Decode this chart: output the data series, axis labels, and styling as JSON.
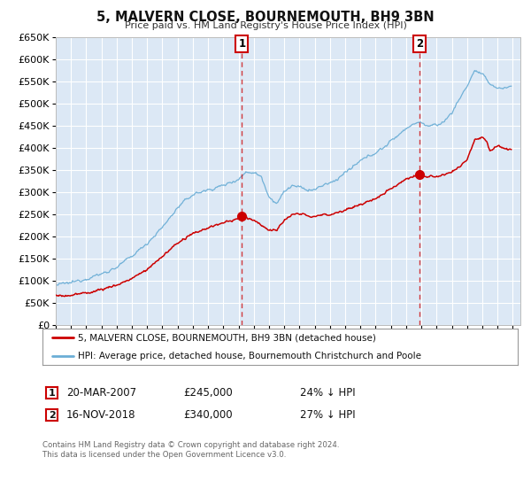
{
  "title": "5, MALVERN CLOSE, BOURNEMOUTH, BH9 3BN",
  "subtitle": "Price paid vs. HM Land Registry's House Price Index (HPI)",
  "hpi_color": "#6baed6",
  "price_color": "#cc0000",
  "background_color": "#ffffff",
  "plot_bg_color": "#dce8f5",
  "grid_color": "#ffffff",
  "ylim": [
    0,
    650000
  ],
  "yticks": [
    0,
    50000,
    100000,
    150000,
    200000,
    250000,
    300000,
    350000,
    400000,
    450000,
    500000,
    550000,
    600000,
    650000
  ],
  "xlim_start": 1995.0,
  "xlim_end": 2025.5,
  "marker1_x": 2007.22,
  "marker1_y": 245000,
  "marker1_label": "1",
  "marker1_date": "20-MAR-2007",
  "marker1_price": "£245,000",
  "marker1_hpi": "24% ↓ HPI",
  "marker2_x": 2018.88,
  "marker2_y": 340000,
  "marker2_label": "2",
  "marker2_date": "16-NOV-2018",
  "marker2_price": "£340,000",
  "marker2_hpi": "27% ↓ HPI",
  "legend_line1": "5, MALVERN CLOSE, BOURNEMOUTH, BH9 3BN (detached house)",
  "legend_line2": "HPI: Average price, detached house, Bournemouth Christchurch and Poole",
  "footer1": "Contains HM Land Registry data © Crown copyright and database right 2024.",
  "footer2": "This data is licensed under the Open Government Licence v3.0."
}
